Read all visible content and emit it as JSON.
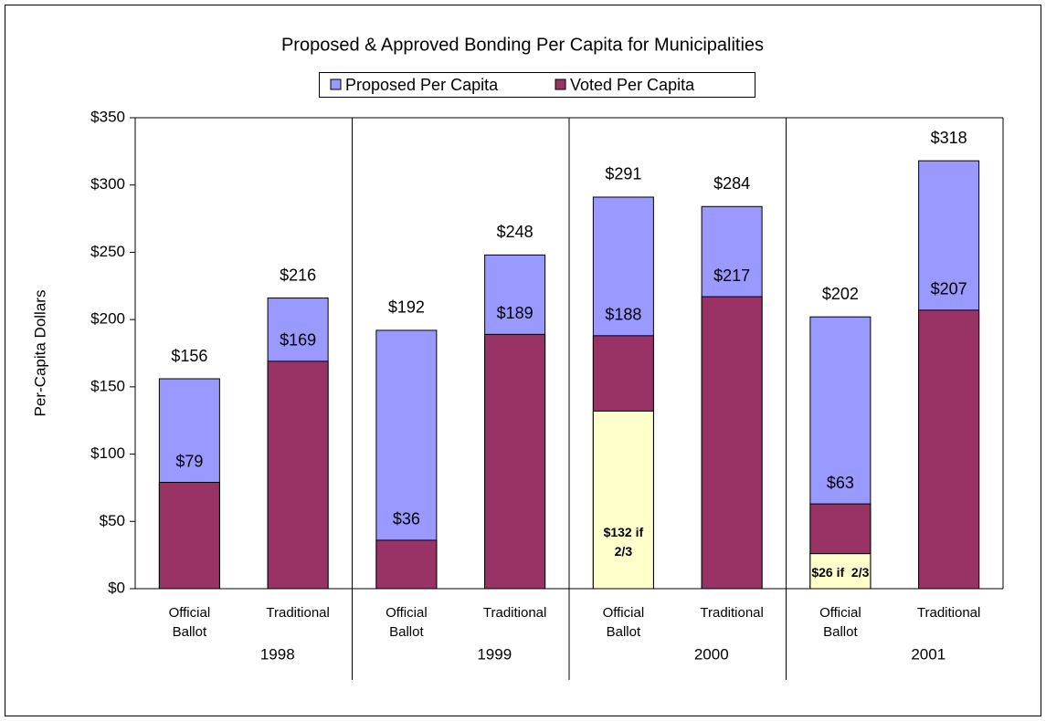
{
  "chart_data": {
    "type": "bar",
    "title": "Proposed & Approved Bonding Per Capita for Municipalities",
    "y_label": "Per-Capita Dollars",
    "categories": [
      "Official Ballot",
      "Traditional",
      "Official Ballot",
      "Traditional",
      "Official Ballot",
      "Traditional",
      "Official Ballot",
      "Traditional"
    ],
    "groups": [
      "1998",
      "1999",
      "2000",
      "2001"
    ],
    "series": [
      {
        "name": "Proposed Per Capita",
        "color": "#9999ff",
        "values": [
          156,
          216,
          192,
          248,
          291,
          284,
          202,
          318
        ],
        "value_labels": [
          "$156",
          "$216",
          "$192",
          "$248",
          "$291",
          "$284",
          "$202",
          "$318"
        ]
      },
      {
        "name": "Voted Per Capita",
        "color": "#993366",
        "values": [
          79,
          169,
          36,
          189,
          188,
          217,
          63,
          207
        ],
        "value_labels": [
          "$79",
          "$169",
          "$36",
          "$189",
          "$188",
          "$217",
          "$63",
          "$207"
        ]
      }
    ],
    "two_thirds": {
      "color": "#ffffcc",
      "values": [
        null,
        null,
        null,
        null,
        132,
        null,
        26,
        null
      ],
      "value_labels": [
        null,
        null,
        null,
        null,
        "$132 if 2/3",
        null,
        "$26 if  2/3",
        null
      ]
    },
    "ylim": [
      0,
      350
    ],
    "yticks": [
      {
        "value": 0,
        "label": "$0"
      },
      {
        "value": 50,
        "label": "$50"
      },
      {
        "value": 100,
        "label": "$100"
      },
      {
        "value": 150,
        "label": "$150"
      },
      {
        "value": 200,
        "label": "$200"
      },
      {
        "value": 250,
        "label": "$250"
      },
      {
        "value": 300,
        "label": "$300"
      },
      {
        "value": 350,
        "label": "$350"
      }
    ],
    "grid": false,
    "legend": "top"
  }
}
